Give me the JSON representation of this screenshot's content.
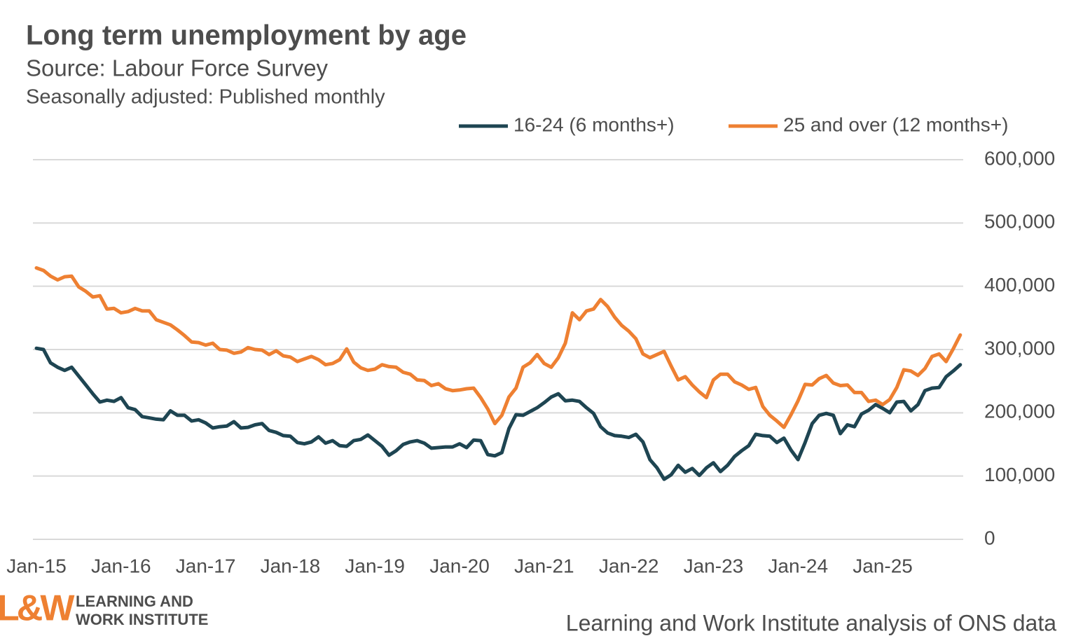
{
  "chart_data": {
    "type": "line",
    "title": "Long term unemployment by age",
    "subtitle": "Source: Labour Force Survey",
    "note": "Seasonally adjusted: Published monthly",
    "source": "Learning and Work Institute analysis of ONS data",
    "logo": {
      "mark": "L&W",
      "line1": "LEARNING AND",
      "line2": "WORK INSTITUTE"
    },
    "legend_position": "top-right",
    "grid": true,
    "categories": [
      "Jan-15",
      null,
      null,
      null,
      null,
      null,
      null,
      null,
      null,
      null,
      null,
      null,
      "Jan-16",
      null,
      null,
      null,
      null,
      null,
      null,
      null,
      null,
      null,
      null,
      null,
      "Jan-17",
      null,
      null,
      null,
      null,
      null,
      null,
      null,
      null,
      null,
      null,
      null,
      "Jan-18",
      null,
      null,
      null,
      null,
      null,
      null,
      null,
      null,
      null,
      null,
      null,
      "Jan-19",
      null,
      null,
      null,
      null,
      null,
      null,
      null,
      null,
      null,
      null,
      null,
      "Jan-20",
      null,
      null,
      null,
      null,
      null,
      null,
      null,
      null,
      null,
      null,
      null,
      "Jan-21",
      null,
      null,
      null,
      null,
      null,
      null,
      null,
      null,
      null,
      null,
      null,
      "Jan-22",
      null,
      null,
      null,
      null,
      null,
      null,
      null,
      null,
      null,
      null,
      null,
      "Jan-23",
      null,
      null,
      null,
      null,
      null,
      null,
      null,
      null,
      null,
      null,
      null,
      "Jan-24",
      null,
      null,
      null,
      null,
      null,
      null,
      null,
      null,
      null,
      null,
      null,
      "Jan-25",
      null,
      null,
      null,
      null,
      null,
      null,
      null,
      null,
      null,
      null,
      null
    ],
    "ylim": [
      0,
      600000
    ],
    "yticks": [
      0,
      {
        "value": 100000,
        "label": "100,000"
      },
      {
        "value": 200000,
        "label": "200,000"
      },
      {
        "value": 300000,
        "label": "300,000"
      },
      {
        "value": 400000,
        "label": "400,000"
      },
      {
        "value": 500000,
        "label": "500,000"
      },
      {
        "value": 600000,
        "label": "600,000"
      }
    ],
    "series": [
      {
        "name": "16-24 (6 months+)",
        "color": "#1e4552",
        "values": [
          302000,
          300000,
          279000,
          272000,
          267000,
          272000,
          258000,
          244000,
          230000,
          217000,
          220000,
          218000,
          224000,
          208000,
          205000,
          194000,
          192000,
          190000,
          189000,
          203000,
          196000,
          196000,
          187000,
          189000,
          184000,
          176000,
          178000,
          179000,
          186000,
          176000,
          177000,
          181000,
          183000,
          172000,
          169000,
          164000,
          163000,
          153000,
          151000,
          154000,
          162000,
          152000,
          156000,
          148000,
          147000,
          156000,
          158000,
          165000,
          156000,
          147000,
          133000,
          140000,
          150000,
          154000,
          156000,
          152000,
          144000,
          145000,
          146000,
          146000,
          151000,
          145000,
          157000,
          156000,
          134000,
          132000,
          137000,
          175000,
          197000,
          196000,
          202000,
          208000,
          216000,
          225000,
          230000,
          219000,
          220000,
          218000,
          208000,
          199000,
          178000,
          168000,
          164000,
          163000,
          161000,
          166000,
          154000,
          126000,
          113000,
          95000,
          102000,
          117000,
          106000,
          112000,
          101000,
          113000,
          121000,
          107000,
          117000,
          131000,
          140000,
          148000,
          166000,
          164000,
          163000,
          153000,
          160000,
          141000,
          126000,
          153000,
          183000,
          196000,
          199000,
          196000,
          167000,
          181000,
          178000,
          198000,
          204000,
          213000,
          207000,
          200000,
          217000,
          218000,
          203000,
          213000,
          235000,
          239000,
          240000,
          257000,
          266000,
          276000
        ]
      },
      {
        "name": "25 and over (12 months+)",
        "color": "#ee8032",
        "values": [
          429000,
          425000,
          416000,
          410000,
          415000,
          416000,
          399000,
          392000,
          383000,
          385000,
          364000,
          365000,
          358000,
          360000,
          365000,
          361000,
          361000,
          347000,
          343000,
          339000,
          331000,
          322000,
          312000,
          311000,
          307000,
          310000,
          300000,
          299000,
          294000,
          296000,
          303000,
          300000,
          299000,
          292000,
          298000,
          290000,
          288000,
          281000,
          285000,
          289000,
          284000,
          276000,
          278000,
          284000,
          301000,
          280000,
          271000,
          267000,
          269000,
          276000,
          273000,
          272000,
          264000,
          261000,
          252000,
          251000,
          243000,
          246000,
          238000,
          235000,
          236000,
          238000,
          239000,
          224000,
          206000,
          183000,
          196000,
          225000,
          239000,
          272000,
          279000,
          292000,
          278000,
          272000,
          287000,
          310000,
          358000,
          347000,
          361000,
          364000,
          379000,
          368000,
          351000,
          338000,
          329000,
          317000,
          293000,
          287000,
          292000,
          297000,
          274000,
          252000,
          257000,
          244000,
          233000,
          224000,
          252000,
          261000,
          261000,
          249000,
          244000,
          237000,
          240000,
          210000,
          196000,
          187000,
          177000,
          197000,
          219000,
          245000,
          244000,
          254000,
          259000,
          247000,
          243000,
          244000,
          232000,
          232000,
          218000,
          220000,
          213000,
          221000,
          240000,
          268000,
          266000,
          259000,
          270000,
          289000,
          293000,
          281000,
          301000,
          323000
        ]
      }
    ]
  }
}
